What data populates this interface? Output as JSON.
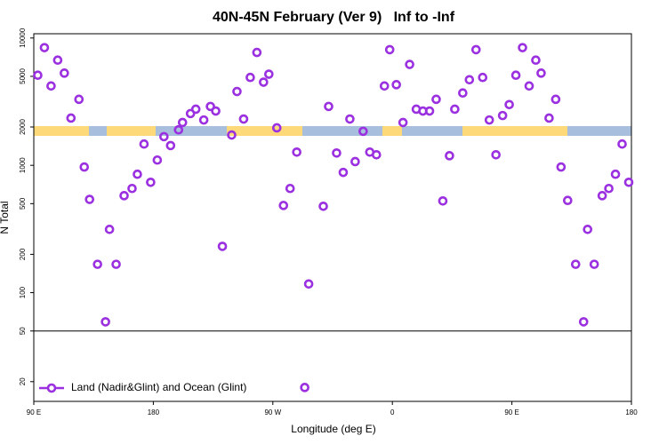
{
  "chart_data": {
    "type": "scatter",
    "title": "40N-45N February (Ver 9)   Inf to -Inf",
    "x_label": "Longitude (deg E)",
    "y_label": "N Total",
    "log_y": true,
    "legend": "bottom-left",
    "reference_line": 50,
    "xlim": [
      90,
      540
    ],
    "ylim": [
      14,
      10800
    ],
    "xticks": [
      {
        "value": 90,
        "label": "90 E"
      },
      180,
      {
        "value": 270,
        "label": "90 W"
      },
      {
        "value": 360,
        "label": "0"
      },
      {
        "value": 450,
        "label": "90 E"
      },
      {
        "value": 540,
        "label": "180"
      }
    ],
    "yticks": [
      20,
      50,
      100,
      200,
      500,
      1000,
      2000,
      5000,
      10000
    ],
    "series": [
      {
        "name": "Land (Nadir&Glint) and Ocean (Glint)",
        "color": "#9b30e0",
        "x": [
          93,
          98,
          103,
          108,
          113,
          118,
          124,
          128,
          132,
          138,
          144,
          147,
          152,
          158,
          164,
          168,
          173,
          178,
          183,
          188,
          193,
          199,
          202,
          208,
          212,
          218,
          223,
          227,
          232,
          239,
          243,
          248,
          253,
          258,
          263,
          267,
          273,
          278,
          283,
          288,
          294,
          297,
          308,
          312,
          318,
          323,
          328,
          332,
          338,
          343,
          348,
          354,
          358,
          363,
          368,
          373,
          378,
          383,
          388,
          393,
          398,
          403,
          407,
          413,
          418,
          423,
          428,
          433,
          438,
          443,
          448,
          453,
          458,
          463,
          468,
          472,
          478,
          483,
          487,
          492,
          498,
          504,
          507,
          512,
          518,
          523,
          528,
          533,
          538
        ],
        "values": [
          5100,
          8400,
          4200,
          6700,
          5300,
          2350,
          3300,
          970,
          540,
          167,
          59,
          314,
          167,
          578,
          658,
          851,
          1470,
          736,
          1100,
          1680,
          1430,
          1900,
          2170,
          2550,
          2760,
          2270,
          2900,
          2670,
          231,
          1730,
          3800,
          2310,
          4900,
          7700,
          4500,
          5200,
          1970,
          484,
          658,
          1270,
          18,
          117,
          477,
          2900,
          1250,
          880,
          2310,
          1070,
          1850,
          1270,
          1210,
          4200,
          8100,
          4300,
          2170,
          6200,
          2760,
          2670,
          2670,
          3300,
          525,
          1190,
          2760,
          3700,
          4700,
          8100,
          4900,
          2270,
          1210,
          2460,
          3000,
          5100,
          8400,
          4200,
          6700,
          5300,
          2350,
          3300,
          970,
          530,
          167,
          59,
          314,
          167,
          578,
          658,
          851,
          1470,
          736
        ]
      }
    ]
  }
}
